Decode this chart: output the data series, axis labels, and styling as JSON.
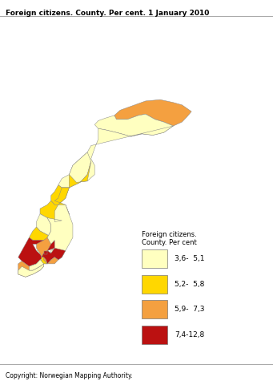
{
  "title": "Foreign citizens. County. Per cent. 1 January 2010",
  "copyright": "Copyright: Norwegian Mapping Authority.",
  "legend_title": "Foreign citizens.\nCounty. Per cent",
  "legend_labels": [
    "3,6-  5,1",
    "5,2-  5,8",
    "5,9-  7,3",
    "7,4-12,8"
  ],
  "legend_colors": [
    "#ffffc0",
    "#ffd700",
    "#f4a040",
    "#bb1111"
  ],
  "county_colors": {
    "Ostfold": "#f4a040",
    "Akershus": "#bb1111",
    "Oslo": "#bb1111",
    "Hedmark": "#ffffc0",
    "Oppland": "#ffffc0",
    "Buskerud": "#f4a040",
    "Vestfold": "#ffd700",
    "Telemark": "#ffffc0",
    "Aust-Agder": "#ffffc0",
    "Vest-Agder": "#f4a040",
    "Rogaland": "#bb1111",
    "Hordaland": "#ffd700",
    "Sogn og Fjordane": "#ffffc0",
    "More og Romsdal": "#ffd700",
    "Sor-Trondelag": "#ffd700",
    "Nord-Trondelag": "#ffffc0",
    "Nordland": "#ffffc0",
    "Troms": "#ffffc0",
    "Finnmark": "#f4a040"
  },
  "background_color": "#ffffff",
  "figsize": [
    3.41,
    4.8
  ],
  "dpi": 100,
  "xlim": [
    4.5,
    31.5
  ],
  "ylim": [
    57.8,
    71.5
  ]
}
